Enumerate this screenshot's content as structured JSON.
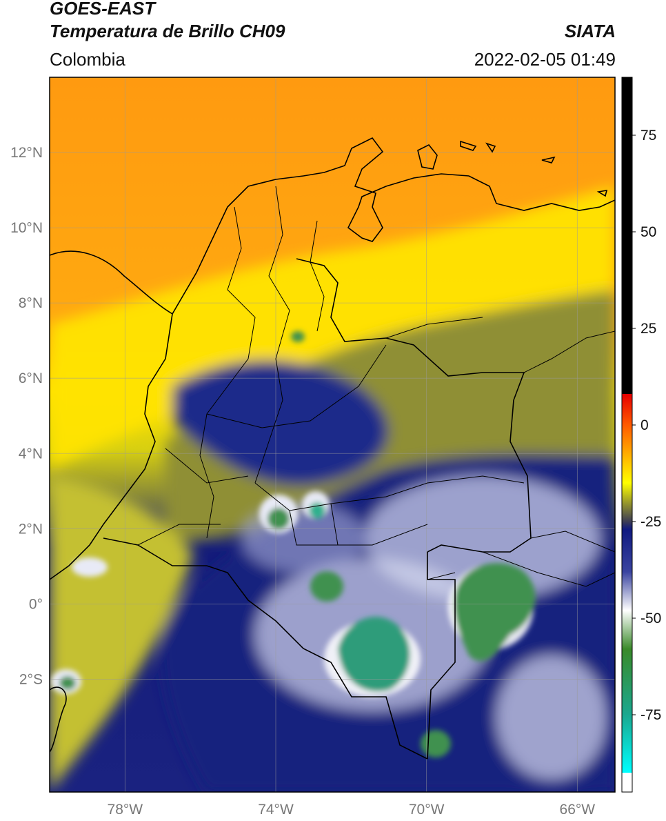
{
  "header": {
    "satellite": "GOES-EAST",
    "product": "Temperatura de Brillo CH09",
    "region": "Colombia",
    "source": "SIATA",
    "timestamp": "2022-02-05 01:49"
  },
  "map": {
    "lon_range": [
      -80,
      -65
    ],
    "lat_range": [
      -5,
      14
    ],
    "lat_ticks": [
      {
        "value": 12,
        "label": "12°N"
      },
      {
        "value": 10,
        "label": "10°N"
      },
      {
        "value": 8,
        "label": "8°N"
      },
      {
        "value": 6,
        "label": "6°N"
      },
      {
        "value": 4,
        "label": "4°N"
      },
      {
        "value": 2,
        "label": "2°N"
      },
      {
        "value": 0,
        "label": "0°"
      },
      {
        "value": -2,
        "label": "2°S"
      }
    ],
    "lon_ticks": [
      {
        "value": -78,
        "label": "78°W"
      },
      {
        "value": -74,
        "label": "74°W"
      },
      {
        "value": -70,
        "label": "70°W"
      },
      {
        "value": -66,
        "label": "66°W"
      }
    ]
  },
  "colorbar": {
    "range": [
      -95,
      90
    ],
    "ticks": [
      {
        "value": 75,
        "label": "75"
      },
      {
        "value": 50,
        "label": "50"
      },
      {
        "value": 25,
        "label": "25"
      },
      {
        "value": 0,
        "label": "0"
      },
      {
        "value": -25,
        "label": "-25"
      },
      {
        "value": -50,
        "label": "-50"
      },
      {
        "value": -75,
        "label": "-75"
      }
    ],
    "stops": [
      {
        "value": 90,
        "color": "#000000"
      },
      {
        "value": 8,
        "color": "#000000"
      },
      {
        "value": 8,
        "color": "#e60000"
      },
      {
        "value": 0,
        "color": "#ff5a00"
      },
      {
        "value": -8,
        "color": "#ffb300"
      },
      {
        "value": -15,
        "color": "#ffff00"
      },
      {
        "value": -20,
        "color": "#9a9a2a"
      },
      {
        "value": -25,
        "color": "#3c3c55"
      },
      {
        "value": -27,
        "color": "#101a80"
      },
      {
        "value": -38,
        "color": "#3a44a0"
      },
      {
        "value": -48,
        "color": "#ffffff"
      },
      {
        "value": -58,
        "color": "#3a8a2a"
      },
      {
        "value": -75,
        "color": "#1aa890"
      },
      {
        "value": -90,
        "color": "#00ffff"
      },
      {
        "value": -90,
        "color": "#ffffff"
      },
      {
        "value": -95,
        "color": "#ffffff"
      }
    ]
  },
  "colors": {
    "orange": "#ff9a10",
    "yellow": "#ffe400",
    "olive": "#8f8f35",
    "navy": "#141c7a",
    "lavender": "#c8cce8",
    "green": "#3f9150",
    "teal": "#2db08e"
  }
}
